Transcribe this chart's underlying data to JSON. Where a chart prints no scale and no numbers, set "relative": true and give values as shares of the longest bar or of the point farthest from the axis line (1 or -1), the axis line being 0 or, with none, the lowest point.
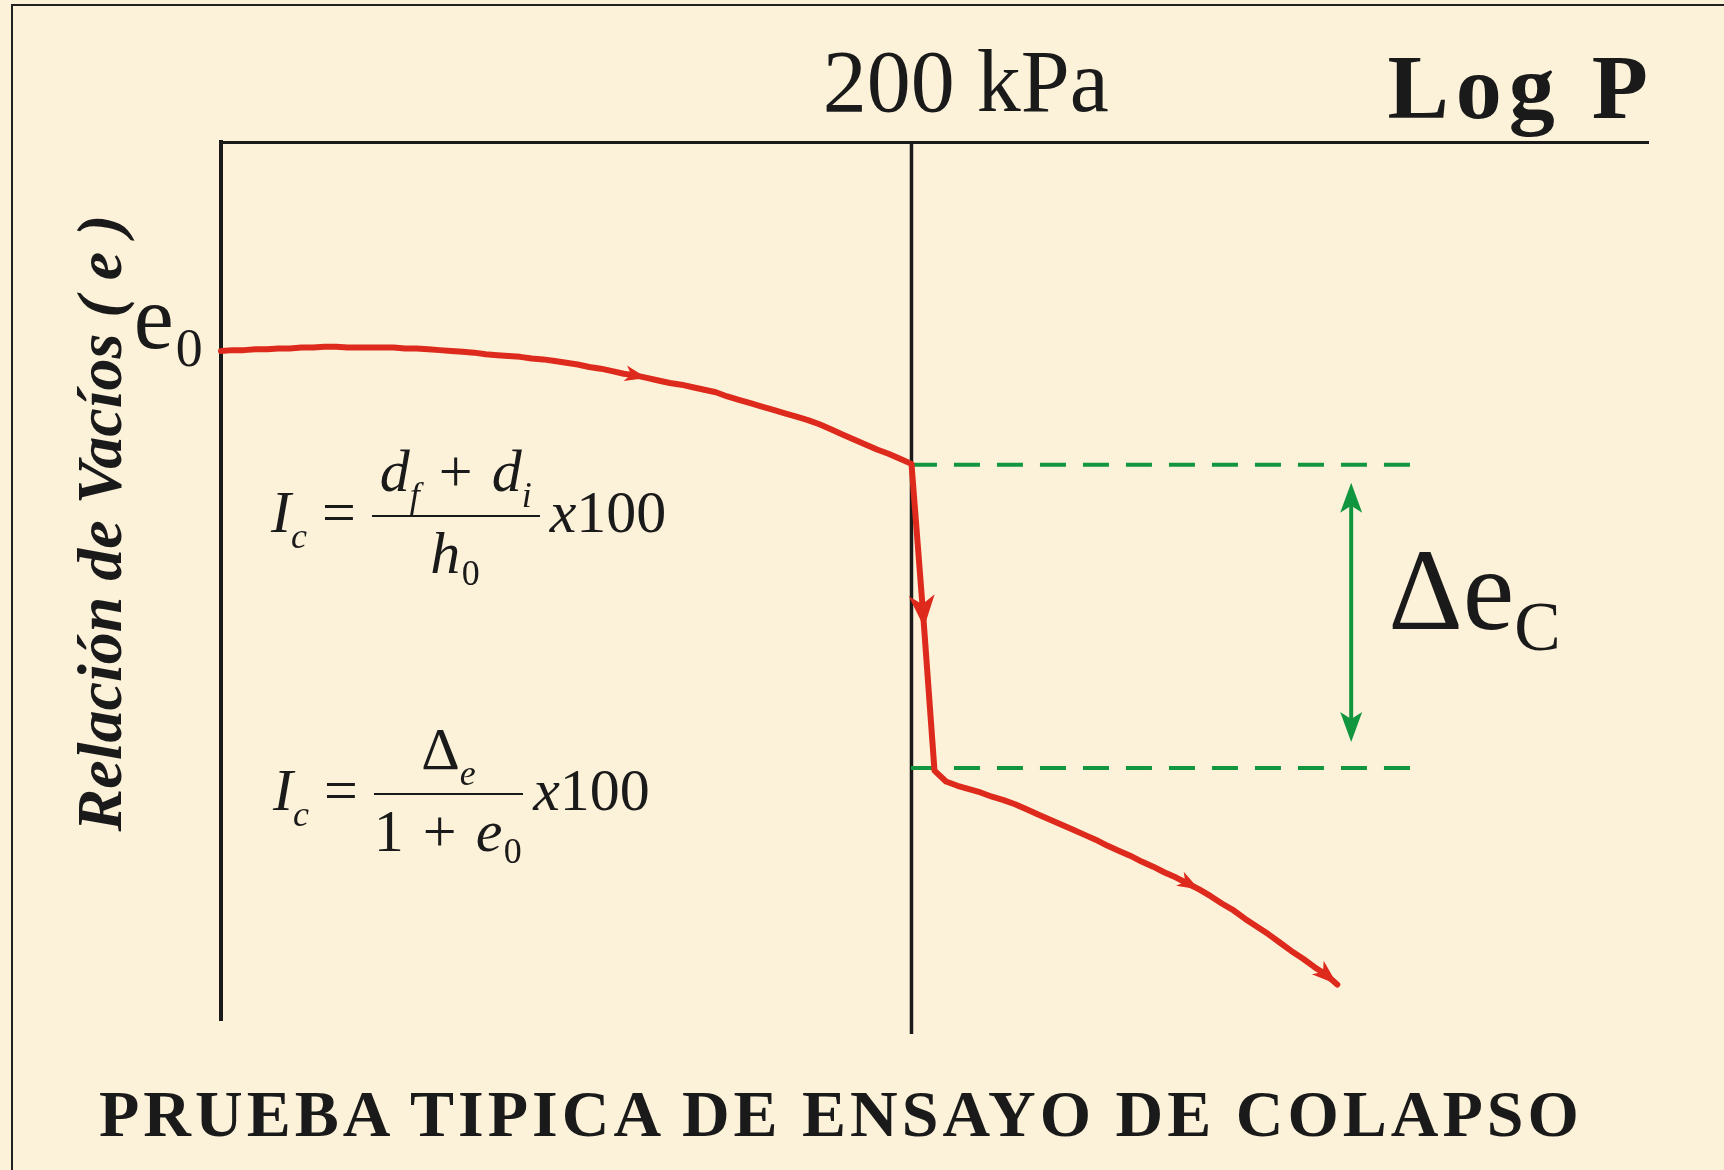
{
  "chart_data": {
    "type": "line",
    "title": "PRUEBA TIPICA DE ENSAYO DE COLAPSO",
    "xlabel": "Log P",
    "ylabel": "Relación de Vacíos ( e )",
    "categories": [
      null,
      null,
      null,
      null,
      null,
      null,
      null,
      null,
      null,
      null,
      null,
      null,
      null,
      null,
      null,
      null,
      null,
      null,
      null,
      null,
      null,
      null,
      null,
      null,
      null,
      null,
      null,
      null,
      null,
      null,
      null,
      null,
      null,
      null,
      null,
      null,
      null,
      null,
      null,
      null,
      null,
      null,
      null,
      null,
      null,
      null,
      null,
      null,
      null,
      null,
      null,
      null,
      null,
      null,
      null,
      null,
      null,
      null,
      null,
      null,
      null,
      null,
      null,
      null,
      null,
      null,
      null,
      null,
      null,
      null,
      null,
      null,
      null,
      null,
      null,
      null,
      null,
      null,
      null,
      null,
      null,
      null,
      null,
      null,
      null,
      null,
      null,
      null,
      null,
      null,
      null,
      null,
      null,
      null,
      null,
      null,
      null,
      null,
      null,
      null,
      null,
      null,
      null,
      null,
      null,
      null,
      null,
      null,
      null,
      null,
      null,
      null,
      null,
      null,
      null,
      null,
      null,
      null,
      null,
      null,
      null,
      null,
      null,
      null,
      null
    ],
    "values": [
      -0.248,
      -0.247,
      -0.247,
      -0.246,
      -0.246,
      -0.245,
      -0.245,
      -0.244,
      -0.244,
      -0.243,
      -0.243,
      -0.244,
      -0.244,
      -0.244,
      -0.244,
      -0.244,
      -0.245,
      -0.245,
      -0.246,
      -0.247,
      -0.248,
      -0.249,
      -0.25,
      -0.252,
      -0.253,
      -0.254,
      -0.255,
      -0.257,
      -0.258,
      -0.26,
      -0.262,
      -0.264,
      -0.267,
      -0.269,
      -0.272,
      -0.275,
      -0.277,
      -0.28,
      -0.283,
      -0.286,
      -0.288,
      -0.291,
      -0.294,
      -0.297,
      -0.302,
      -0.306,
      -0.31,
      -0.314,
      -0.318,
      -0.322,
      -0.326,
      -0.33,
      -0.335,
      -0.341,
      -0.347,
      -0.353,
      -0.359,
      -0.365,
      -0.37,
      -0.376,
      -0.382,
      -0.558,
      -0.746,
      -0.759,
      -0.764,
      -0.768,
      -0.772,
      -0.777,
      -0.781,
      -0.786,
      -0.792,
      -0.798,
      -0.804,
      -0.81,
      -0.816,
      -0.822,
      -0.828,
      -0.835,
      -0.841,
      -0.847,
      -0.854,
      -0.86,
      -0.867,
      -0.873,
      -0.88,
      -0.887,
      -0.895,
      -0.904,
      -0.912,
      -0.922,
      -0.931,
      -0.94,
      -0.95,
      -0.96,
      -0.969,
      -0.979,
      -0.988,
      -1,
      null,
      null,
      null,
      null,
      null,
      null,
      null,
      null,
      null,
      null,
      null,
      null,
      null,
      null,
      null,
      null,
      null,
      null,
      null,
      null,
      null,
      null,
      null,
      null,
      null,
      null,
      null
    ],
    "color": "#dd2a1c",
    "relative": true,
    "marker": "none",
    "ref_lines": [
      {
        "axis": "x",
        "value": "200 kPa",
        "color": "#1a1a1a"
      },
      {
        "axis": "y",
        "value": -0.383,
        "color": "#11963f",
        "line_style": "dashed"
      },
      {
        "axis": "y",
        "value": -0.743,
        "color": "#11963f",
        "line_style": "dashed"
      }
    ],
    "annotations": [
      "e₀",
      "Δe$_{C}$",
      "I$_{c}$ =",
      "d$_{f}$ + d$_{i}$",
      "h₀",
      "x100",
      "I$_{c}$ =",
      "Δ$_{e}$",
      "1 + e₀",
      "x100"
    ]
  }
}
